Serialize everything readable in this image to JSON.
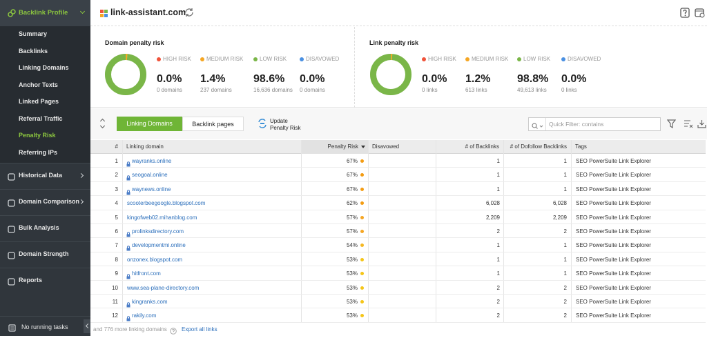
{
  "sidebar": {
    "section": "Backlink Profile",
    "submenu": [
      "Summary",
      "Backlinks",
      "Linking Domains",
      "Anchor Texts",
      "Linked Pages",
      "Referral Traffic",
      "Penalty Risk",
      "Referring IPs"
    ],
    "active_index": 6,
    "sections": [
      "Historical Data",
      "Domain Comparison",
      "Bulk Analysis",
      "Domain Strength",
      "Reports"
    ],
    "status": "No running tasks"
  },
  "header": {
    "site": "link-assistant.com"
  },
  "panels": [
    {
      "title": "Domain penalty risk",
      "stats": [
        {
          "name": "HIGH RISK",
          "color": "#f0533a",
          "value": 0.0,
          "label": "0.0%",
          "count": "0 domains"
        },
        {
          "name": "MEDIUM RISK",
          "color": "#f5a623",
          "value": 1.4,
          "label": "1.4%",
          "count": "237 domains"
        },
        {
          "name": "LOW RISK",
          "color": "#7ab648",
          "value": 98.6,
          "label": "98.6%",
          "count": "16,636 domains"
        },
        {
          "name": "DISAVOWED",
          "color": "#4a90e2",
          "value": 0.0,
          "label": "0.0%",
          "count": "0 domains"
        }
      ]
    },
    {
      "title": "Link penalty risk",
      "stats": [
        {
          "name": "HIGH RISK",
          "color": "#f0533a",
          "value": 0.0,
          "label": "0.0%",
          "count": "0 links"
        },
        {
          "name": "MEDIUM RISK",
          "color": "#f5a623",
          "value": 1.2,
          "label": "1.2%",
          "count": "613 links"
        },
        {
          "name": "LOW RISK",
          "color": "#7ab648",
          "value": 98.8,
          "label": "98.8%",
          "count": "49,613 links"
        },
        {
          "name": "DISAVOWED",
          "color": "#4a90e2",
          "value": 0.0,
          "label": "0.0%",
          "count": "0 links"
        }
      ]
    }
  ],
  "toolbar": {
    "tabs": [
      "Linking Domains",
      "Backlink pages"
    ],
    "active_tab": 0,
    "update": [
      "Update",
      "Penalty Risk"
    ],
    "filter_placeholder": "Quick Filter: contains"
  },
  "table": {
    "columns": [
      "#",
      "Linking domain",
      "Penalty Risk",
      "Disavowed",
      "# of Backlinks",
      "# of Dofollow Backlinks",
      "Tags"
    ],
    "rows": [
      {
        "n": "1",
        "domain": "wayranks.online",
        "secure": true,
        "risk": "67%",
        "risk_color": "#f39c12",
        "backlinks": "1",
        "dofollow": "1",
        "tags": "SEO PowerSuite Link Explorer"
      },
      {
        "n": "2",
        "domain": "seogoal.online",
        "secure": true,
        "risk": "67%",
        "risk_color": "#f39c12",
        "backlinks": "1",
        "dofollow": "1",
        "tags": "SEO PowerSuite Link Explorer"
      },
      {
        "n": "3",
        "domain": "waynews.online",
        "secure": true,
        "risk": "67%",
        "risk_color": "#f39c12",
        "backlinks": "1",
        "dofollow": "1",
        "tags": "SEO PowerSuite Link Explorer"
      },
      {
        "n": "4",
        "domain": "scooterbeegoogle.blogspot.com",
        "secure": false,
        "risk": "62%",
        "risk_color": "#f39c12",
        "backlinks": "6,028",
        "dofollow": "6,028",
        "tags": "SEO PowerSuite Link Explorer"
      },
      {
        "n": "5",
        "domain": "kingofweb02.mihanblog.com",
        "secure": false,
        "risk": "57%",
        "risk_color": "#f5a623",
        "backlinks": "2,209",
        "dofollow": "2,209",
        "tags": "SEO PowerSuite Link Explorer"
      },
      {
        "n": "6",
        "domain": "prolinksdirectory.com",
        "secure": true,
        "risk": "57%",
        "risk_color": "#f5a623",
        "backlinks": "2",
        "dofollow": "2",
        "tags": "SEO PowerSuite Link Explorer"
      },
      {
        "n": "7",
        "domain": "developmentmi.online",
        "secure": true,
        "risk": "54%",
        "risk_color": "#f5b823",
        "backlinks": "1",
        "dofollow": "1",
        "tags": "SEO PowerSuite Link Explorer"
      },
      {
        "n": "8",
        "domain": "onzonex.blogspot.com",
        "secure": false,
        "risk": "53%",
        "risk_color": "#f5c518",
        "backlinks": "1",
        "dofollow": "1",
        "tags": "SEO PowerSuite Link Explorer"
      },
      {
        "n": "9",
        "domain": "hitfront.com",
        "secure": true,
        "risk": "53%",
        "risk_color": "#f5c518",
        "backlinks": "1",
        "dofollow": "1",
        "tags": "SEO PowerSuite Link Explorer"
      },
      {
        "n": "10",
        "domain": "www.sea-plane-directory.com",
        "secure": false,
        "risk": "53%",
        "risk_color": "#f5c518",
        "backlinks": "2",
        "dofollow": "2",
        "tags": "SEO PowerSuite Link Explorer"
      },
      {
        "n": "11",
        "domain": "kingranks.com",
        "secure": true,
        "risk": "53%",
        "risk_color": "#f5c518",
        "backlinks": "2",
        "dofollow": "2",
        "tags": "SEO PowerSuite Link Explorer"
      },
      {
        "n": "12",
        "domain": "rakily.com",
        "secure": true,
        "risk": "53%",
        "risk_color": "#f5c518",
        "backlinks": "2",
        "dofollow": "2",
        "tags": "SEO PowerSuite Link Explorer"
      }
    ]
  },
  "footer": {
    "more": "and 776 more linking domains",
    "export": "Export all links"
  }
}
